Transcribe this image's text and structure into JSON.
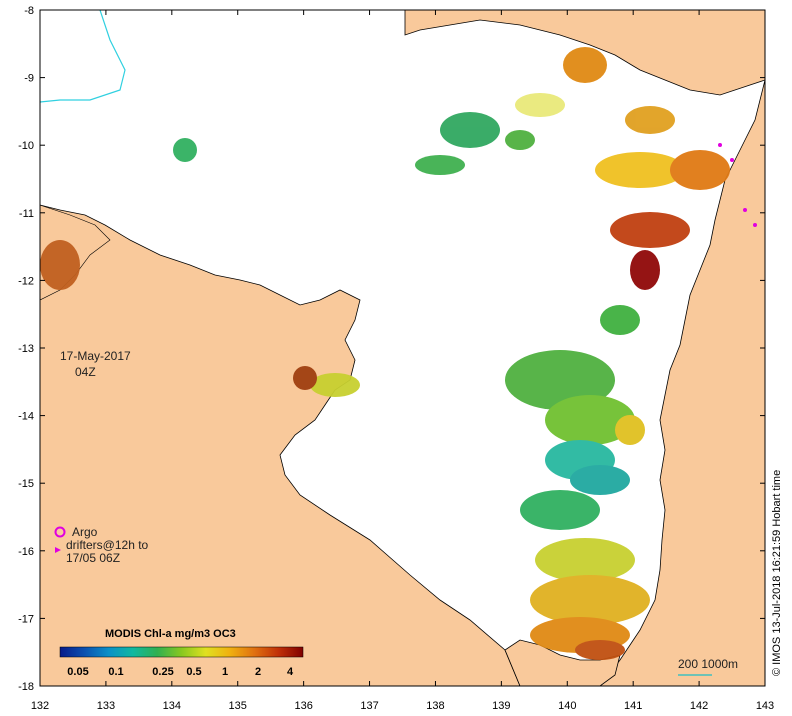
{
  "map": {
    "x_ticks": [
      "132",
      "133",
      "134",
      "135",
      "136",
      "137",
      "138",
      "139",
      "140",
      "141",
      "142",
      "143"
    ],
    "y_ticks": [
      "-8",
      "-9",
      "-10",
      "-11",
      "-12",
      "-13",
      "-14",
      "-15",
      "-16",
      "-17",
      "-18"
    ],
    "lon_range": [
      132,
      143
    ],
    "lat_range": [
      -18,
      -8
    ],
    "land_color": "#f9c99b",
    "ocean_color": "#ffffff"
  },
  "annotation": {
    "date": "17-May-2017",
    "time": "04Z"
  },
  "argo_legend": {
    "line1": "Argo",
    "line2": "drifters@12h to",
    "line3": "17/05 06Z",
    "marker_color": "#e000e0"
  },
  "colorbar": {
    "title": "MODIS Chl-a mg/m3 OC3",
    "ticks": [
      "0.05",
      "0.1",
      "0.25",
      "0.5",
      "1",
      "2",
      "4"
    ],
    "colors": [
      "#081a8a",
      "#0a50b0",
      "#0a90c8",
      "#10b8a0",
      "#30b050",
      "#88c820",
      "#e0e020",
      "#f0b010",
      "#e07010",
      "#c03008",
      "#800000"
    ]
  },
  "scale_bar": {
    "label": "200  1000m",
    "line_color": "#40c0c0"
  },
  "credit": "© IMOS 13-Jul-2018 16:21:59 Hobart time"
}
